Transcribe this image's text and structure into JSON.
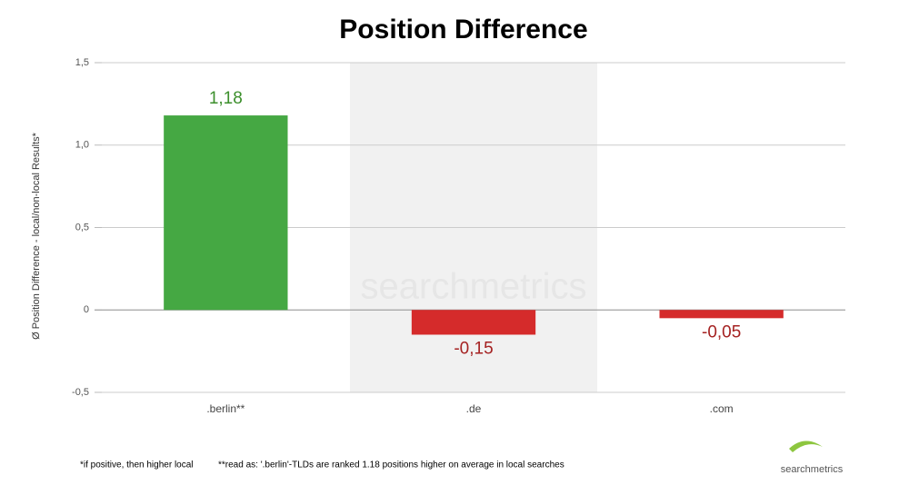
{
  "chart_data": {
    "type": "bar",
    "title": "Position Difference",
    "y_label": "Ø Position Difference - local/non-local Results*",
    "categories": [
      ".berlin**",
      ".de",
      ".com"
    ],
    "values": [
      1.18,
      -0.15,
      -0.05
    ],
    "value_labels": [
      "1,18",
      "-0,15",
      "-0,05"
    ],
    "colors": [
      "#45a843",
      "#d52b2b",
      "#d52b2b"
    ],
    "label_colors": [
      "#3c8f2c",
      "#a52222",
      "#a52222"
    ],
    "ylim": [
      -0.5,
      1.5
    ],
    "yticks": [
      {
        "value": -0.5,
        "label": "-0,5"
      },
      0,
      {
        "value": 0.5,
        "label": "0,5"
      },
      {
        "value": 1.0,
        "label": "1,0"
      },
      {
        "value": 1.5,
        "label": "1,5"
      }
    ],
    "grid": true,
    "watermark": "searchmetrics",
    "footnotes": [
      "*if positive, then higher local",
      "**read as: '.berlin'-TLDs are ranked 1.18 positions higher on average in local searches"
    ],
    "logo": "searchmetrics"
  }
}
